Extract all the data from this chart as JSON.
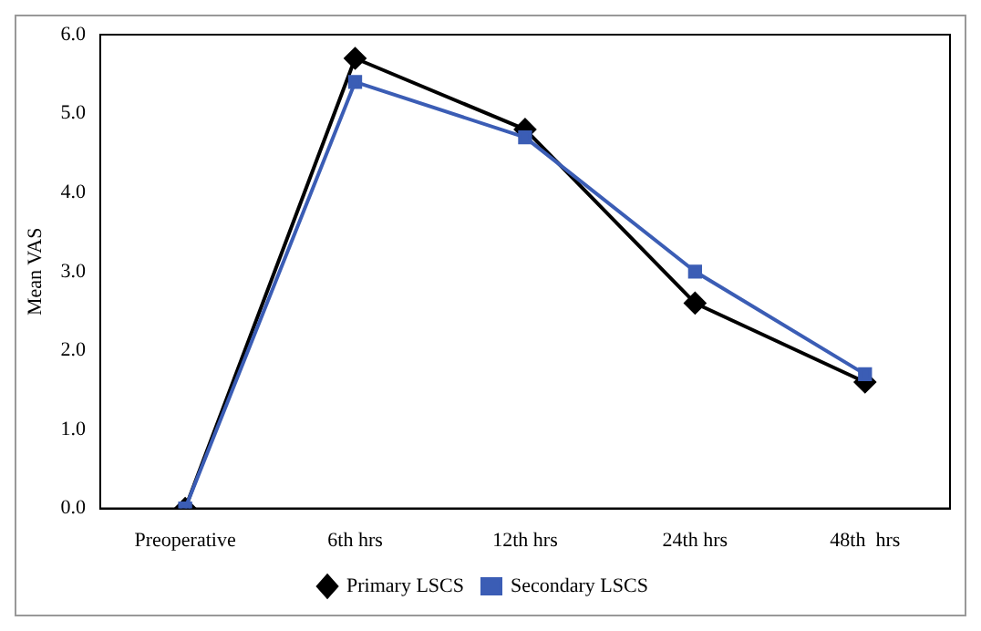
{
  "chart_data": {
    "type": "line",
    "ylabel": "Mean VAS",
    "categories": [
      "Preoperative",
      "6th hrs",
      "12th hrs",
      "24th hrs",
      "48th  hrs"
    ],
    "series": [
      {
        "name": "Primary LSCS",
        "color": "#000000",
        "marker": "diamond",
        "values": [
          0,
          5.7,
          4.8,
          2.6,
          1.6
        ]
      },
      {
        "name": "Secondary LSCS",
        "color": "#3b5db5",
        "marker": "square",
        "values": [
          0,
          5.4,
          4.7,
          3.0,
          1.7
        ]
      }
    ],
    "ylim": [
      0,
      6
    ],
    "yticks": [
      {
        "value": 0,
        "label": "0.0"
      },
      {
        "value": 1,
        "label": "1.0"
      },
      {
        "value": 2,
        "label": "2.0"
      },
      {
        "value": 3,
        "label": "3.0"
      },
      {
        "value": 4,
        "label": "4.0"
      },
      {
        "value": 5,
        "label": "5.0"
      },
      {
        "value": 6,
        "label": "6.0"
      }
    ],
    "grid": false,
    "legend": "bottom"
  }
}
